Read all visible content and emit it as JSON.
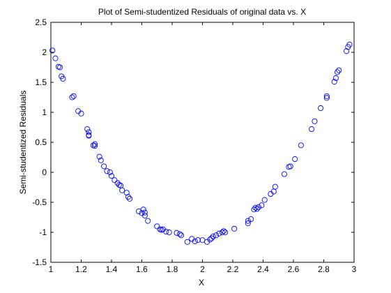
{
  "chart_data": {
    "type": "scatter",
    "title": "Plot of Semi-studentized Residuals of original data vs. X",
    "xlabel": "X",
    "ylabel": "Semi-studentized Residuals",
    "xlim": [
      1,
      3
    ],
    "ylim": [
      -1.5,
      2.5
    ],
    "xticks": [
      "1",
      "1.2",
      "1.4",
      "1.6",
      "1.8",
      "2",
      "2.2",
      "2.4",
      "2.6",
      "2.8",
      "3"
    ],
    "yticks": [
      "-1.5",
      "-1",
      "-0.5",
      "0",
      "0.5",
      "1",
      "1.5",
      "2",
      "2.5"
    ],
    "grid": false,
    "marker": "circle-open",
    "colors": {
      "marker": "#0000ff",
      "axes": "#000000",
      "background": "#ffffff"
    },
    "series": [
      {
        "x": [
          1.01,
          1.03,
          1.05,
          1.06,
          1.07,
          1.08,
          1.14,
          1.15,
          1.18,
          1.2,
          1.24,
          1.25,
          1.25,
          1.25,
          1.28,
          1.29,
          1.29,
          1.32,
          1.33,
          1.35,
          1.37,
          1.39,
          1.4,
          1.42,
          1.44,
          1.45,
          1.46,
          1.47,
          1.5,
          1.51,
          1.52,
          1.58,
          1.6,
          1.61,
          1.62,
          1.62,
          1.64,
          1.7,
          1.72,
          1.73,
          1.74,
          1.76,
          1.78,
          1.83,
          1.85,
          1.86,
          1.9,
          1.93,
          1.95,
          1.97,
          2.0,
          2.03,
          2.05,
          2.06,
          2.07,
          2.09,
          2.11,
          2.13,
          2.14,
          2.15,
          2.21,
          2.3,
          2.3,
          2.32,
          2.34,
          2.35,
          2.36,
          2.37,
          2.39,
          2.41,
          2.45,
          2.47,
          2.48,
          2.54,
          2.57,
          2.58,
          2.61,
          2.65,
          2.72,
          2.74,
          2.78,
          2.82,
          2.82,
          2.87,
          2.88,
          2.89,
          2.9,
          2.95,
          2.96,
          2.97
        ],
        "y": [
          2.03,
          1.9,
          1.76,
          1.75,
          1.6,
          1.56,
          1.25,
          1.27,
          1.02,
          0.98,
          0.72,
          0.67,
          0.62,
          0.61,
          0.45,
          0.44,
          0.47,
          0.26,
          0.2,
          0.1,
          0.02,
          0.0,
          -0.06,
          -0.13,
          -0.18,
          -0.21,
          -0.22,
          -0.3,
          -0.34,
          -0.41,
          -0.44,
          -0.65,
          -0.68,
          -0.62,
          -0.67,
          -0.72,
          -0.81,
          -0.9,
          -0.95,
          -0.96,
          -0.95,
          -0.99,
          -1.0,
          -1.01,
          -1.03,
          -1.05,
          -1.16,
          -1.11,
          -1.15,
          -1.13,
          -1.13,
          -1.16,
          -1.12,
          -1.1,
          -1.07,
          -1.05,
          -1.02,
          -1.0,
          -0.98,
          -1.0,
          -0.94,
          -0.81,
          -0.85,
          -0.78,
          -0.62,
          -0.59,
          -0.61,
          -0.58,
          -0.55,
          -0.46,
          -0.36,
          -0.32,
          -0.24,
          -0.03,
          0.09,
          0.1,
          0.22,
          0.45,
          0.72,
          0.85,
          1.07,
          1.24,
          1.27,
          1.51,
          1.57,
          1.67,
          1.7,
          2.02,
          2.09,
          2.13
        ]
      }
    ]
  }
}
